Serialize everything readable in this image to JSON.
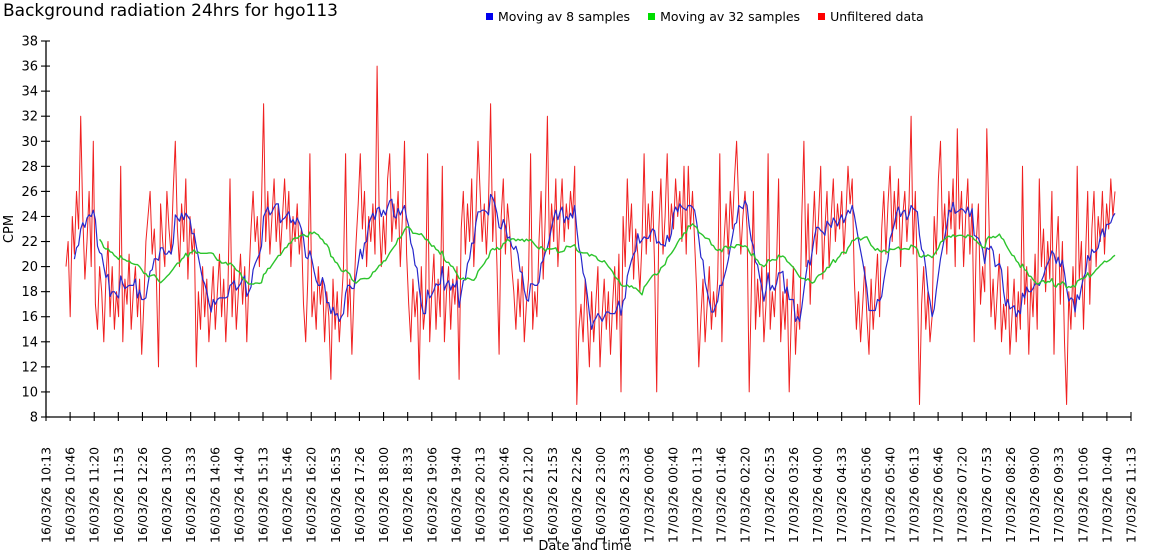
{
  "title": "Background radiation 24hrs for hgo113",
  "legend": [
    {
      "label": "Moving av 8 samples",
      "color": "#0000ee"
    },
    {
      "label": "Moving av 32 samples",
      "color": "#00dd00"
    },
    {
      "label": "Unfiltered data",
      "color": "#ff0000"
    }
  ],
  "chart_data": {
    "type": "line",
    "title": "Background radiation 24hrs for hgo113",
    "xlabel": "Date and time",
    "ylabel": "CPM",
    "ylim": [
      8,
      38
    ],
    "ytick_step": 2,
    "y_ticks": [
      8,
      10,
      12,
      14,
      16,
      18,
      20,
      22,
      24,
      26,
      28,
      30,
      32,
      34,
      36,
      38
    ],
    "grid": false,
    "legend_position": "top",
    "x_tick_labels": [
      "16/03/26 10:13",
      "16/03/26 10:46",
      "16/03/26 11:20",
      "16/03/26 11:53",
      "16/03/26 12:26",
      "16/03/26 13:00",
      "16/03/26 13:33",
      "16/03/26 14:06",
      "16/03/26 14:40",
      "16/03/26 15:13",
      "16/03/26 15:46",
      "16/03/26 16:20",
      "16/03/26 16:53",
      "16/03/26 17:26",
      "16/03/26 18:00",
      "16/03/26 18:33",
      "16/03/26 19:06",
      "16/03/26 19:40",
      "16/03/26 20:13",
      "16/03/26 20:46",
      "16/03/26 21:20",
      "16/03/26 21:53",
      "16/03/26 22:26",
      "16/03/26 23:00",
      "16/03/26 23:33",
      "17/03/26 00:06",
      "17/03/26 00:40",
      "17/03/26 01:13",
      "17/03/26 01:46",
      "17/03/26 02:20",
      "17/03/26 02:53",
      "17/03/26 03:26",
      "17/03/26 04:00",
      "17/03/26 04:33",
      "17/03/26 05:06",
      "17/03/26 05:40",
      "17/03/26 06:13",
      "17/03/26 06:46",
      "17/03/26 07:20",
      "17/03/26 07:53",
      "17/03/26 08:26",
      "17/03/26 09:00",
      "17/03/26 09:33",
      "17/03/26 10:06",
      "17/03/26 10:40",
      "17/03/26 11:13"
    ],
    "series": [
      {
        "name": "Unfiltered data",
        "color": "#f02020",
        "kind": "raw",
        "values": [
          20,
          22,
          16,
          24,
          21,
          26,
          23,
          32,
          24,
          19,
          22,
          26,
          20,
          30,
          17,
          15,
          20,
          18,
          14,
          19,
          22,
          16,
          20,
          15,
          18,
          16,
          28,
          14,
          19,
          17,
          21,
          15,
          18,
          20,
          16,
          19,
          13,
          17,
          22,
          24,
          26,
          21,
          23,
          19,
          12,
          25,
          22,
          20,
          26,
          23,
          21,
          26,
          30,
          23,
          20,
          25,
          22,
          27,
          19,
          24,
          21,
          23,
          12,
          18,
          15,
          20,
          16,
          19,
          14,
          17,
          20,
          15,
          18,
          21,
          16,
          19,
          14,
          18,
          27,
          16,
          20,
          15,
          18,
          21,
          17,
          20,
          14,
          19,
          23,
          26,
          22,
          24,
          20,
          25,
          33,
          22,
          26,
          21,
          24,
          27,
          22,
          25,
          21,
          24,
          27,
          23,
          26,
          20,
          24,
          22,
          25,
          21,
          23,
          17,
          14,
          19,
          29,
          16,
          18,
          15,
          20,
          17,
          19,
          14,
          18,
          16,
          11,
          19,
          15,
          18,
          14,
          17,
          20,
          29,
          16,
          19,
          13,
          18,
          22,
          25,
          29,
          23,
          26,
          20,
          24,
          22,
          25,
          21,
          36,
          24,
          20,
          24,
          21,
          27,
          29,
          22,
          25,
          23,
          26,
          20,
          24,
          30,
          21,
          17,
          14,
          19,
          16,
          18,
          11,
          20,
          15,
          17,
          29,
          14,
          18,
          21,
          15,
          19,
          16,
          28,
          14,
          18,
          20,
          15,
          19,
          17,
          20,
          11,
          23,
          26,
          21,
          25,
          22,
          27,
          20,
          24,
          30,
          26,
          22,
          25,
          21,
          25,
          33,
          22,
          26,
          20,
          13,
          24,
          27,
          21,
          25,
          23,
          20,
          18,
          15,
          19,
          16,
          20,
          14,
          17,
          19,
          29,
          15,
          18,
          16,
          22,
          26,
          19,
          24,
          32,
          21,
          25,
          22,
          27,
          20,
          24,
          27,
          22,
          25,
          23,
          26,
          24,
          28,
          9,
          15,
          17,
          14,
          19,
          16,
          12,
          18,
          14,
          17,
          20,
          12,
          16,
          19,
          15,
          18,
          13,
          17,
          20,
          15,
          21,
          10,
          24,
          20,
          27,
          22,
          25,
          19,
          23,
          21,
          18,
          22,
          29,
          21,
          25,
          22,
          26,
          20,
          10,
          23,
          27,
          21,
          24,
          29,
          22,
          25,
          23,
          27,
          24,
          26,
          22,
          28,
          21,
          28,
          23,
          26,
          22,
          18,
          12,
          16,
          19,
          14,
          17,
          20,
          15,
          18,
          16,
          19,
          29,
          14,
          22,
          25,
          21,
          26,
          23,
          27,
          30,
          25,
          21,
          24,
          26,
          23,
          10,
          18,
          26,
          15,
          19,
          16,
          20,
          14,
          17,
          29,
          15,
          18,
          16,
          20,
          27,
          14,
          18,
          15,
          19,
          10,
          16,
          20,
          13,
          17,
          15,
          24,
          30,
          20,
          25,
          17,
          22,
          26,
          21,
          24,
          28,
          19,
          23,
          26,
          20,
          24,
          27,
          22,
          25,
          23,
          26,
          21,
          24,
          28,
          25,
          27,
          19,
          15,
          18,
          14,
          17,
          20,
          16,
          13,
          19,
          15,
          18,
          21,
          16,
          23,
          26,
          21,
          25,
          28,
          22,
          26,
          23,
          27,
          20,
          24,
          26,
          22,
          25,
          32,
          21,
          26,
          19,
          9,
          17,
          20,
          15,
          18,
          14,
          16,
          24,
          21,
          27,
          30,
          22,
          25,
          21,
          26,
          23,
          27,
          20,
          31,
          23,
          26,
          20,
          24,
          27,
          21,
          25,
          14,
          22,
          25,
          17,
          20,
          18,
          31,
          24,
          16,
          19,
          15,
          18,
          21,
          14,
          17,
          15,
          20,
          13,
          16,
          19,
          14,
          18,
          15,
          28,
          17,
          20,
          13,
          19,
          16,
          21,
          15,
          27,
          20,
          23,
          18,
          22,
          19,
          26,
          13,
          21,
          24,
          17,
          22,
          14,
          9,
          18,
          15,
          20,
          16,
          28,
          19,
          22,
          15,
          21,
          26,
          17,
          23,
          26,
          20,
          24,
          22,
          26,
          21,
          25,
          23,
          27,
          24,
          26
        ]
      },
      {
        "name": "Moving av 8 samples",
        "color": "#2828cc",
        "kind": "moving_average",
        "window": 8,
        "derived_from": "Unfiltered data",
        "observed_range": [
          16.3,
          25.7
        ]
      },
      {
        "name": "Moving av 32 samples",
        "color": "#2cc42c",
        "kind": "moving_average",
        "window": 32,
        "derived_from": "Unfiltered data",
        "observed_range": [
          19.3,
          23.5
        ]
      }
    ]
  }
}
